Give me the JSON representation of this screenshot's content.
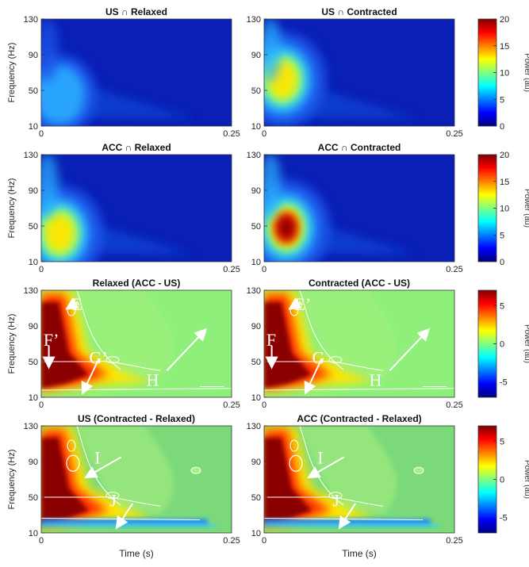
{
  "chart_data": {
    "type": "heatmap",
    "rows": [
      {
        "colorbar": {
          "label": "Power (au)",
          "ticks": [
            20,
            15,
            10,
            5,
            0
          ],
          "range": [
            0,
            20
          ]
        },
        "panels": [
          {
            "title": "US ∩ Relaxed",
            "ylabel": "Frequency (Hz)",
            "xlabel": "",
            "peak": {
              "t": 0.02,
              "f": 45,
              "value": 6
            },
            "annotations": []
          },
          {
            "title": "US ∩ Contracted",
            "ylabel": "",
            "xlabel": "",
            "peak": {
              "t": 0.02,
              "f": 62,
              "value": 13
            },
            "annotations": []
          }
        ]
      },
      {
        "colorbar": {
          "label": "Power (au)",
          "ticks": [
            20,
            15,
            10,
            5,
            0
          ],
          "range": [
            0,
            20
          ]
        },
        "panels": [
          {
            "title": "ACC ∩ Relaxed",
            "ylabel": "Frequency (Hz)",
            "xlabel": "",
            "peak": {
              "t": 0.02,
              "f": 42,
              "value": 14
            },
            "annotations": []
          },
          {
            "title": "ACC ∩ Contracted",
            "ylabel": "",
            "xlabel": "",
            "peak": {
              "t": 0.025,
              "f": 48,
              "value": 22
            },
            "annotations": []
          }
        ]
      },
      {
        "colorbar": {
          "label": "Power (au)",
          "ticks": [
            5,
            0,
            -5
          ],
          "range": [
            -7,
            7
          ]
        },
        "panels": [
          {
            "title": "Relaxed (ACC - US)",
            "ylabel": "Frequency (Hz)",
            "xlabel": "",
            "annotations": [
              {
                "text": "E",
                "at": [
                  0.04,
                  115
                ]
              },
              {
                "text": "F’",
                "at": [
                  0.003,
                  75
                ]
              },
              {
                "text": "G’",
                "at": [
                  0.063,
                  55
                ]
              },
              {
                "text": "H",
                "at": [
                  0.138,
                  30
                ]
              }
            ]
          },
          {
            "title": "Contracted (ACC - US)",
            "ylabel": "",
            "xlabel": "",
            "annotations": [
              {
                "text": "E’",
                "at": [
                  0.04,
                  115
                ]
              },
              {
                "text": "F",
                "at": [
                  0.003,
                  75
                ]
              },
              {
                "text": "G",
                "at": [
                  0.063,
                  55
                ]
              },
              {
                "text": "H",
                "at": [
                  0.138,
                  30
                ]
              }
            ]
          }
        ]
      },
      {
        "colorbar": {
          "label": "Power (au)",
          "ticks": [
            5,
            0,
            -5
          ],
          "range": [
            -7,
            7
          ]
        },
        "panels": [
          {
            "title": "US (Contracted - Relaxed)",
            "ylabel": "Frequency (Hz)",
            "xlabel": "Time (s)",
            "annotations": [
              {
                "text": "I",
                "at": [
                  0.07,
                  95
                ]
              },
              {
                "text": "J",
                "at": [
                  0.09,
                  47
                ]
              }
            ]
          },
          {
            "title": "ACC (Contracted - Relaxed)",
            "ylabel": "",
            "xlabel": "Time (s)",
            "annotations": [
              {
                "text": "I",
                "at": [
                  0.07,
                  95
                ]
              },
              {
                "text": "J",
                "at": [
                  0.09,
                  47
                ]
              }
            ]
          }
        ]
      }
    ],
    "x_range": [
      0,
      0.25
    ],
    "y_range": [
      10,
      130
    ],
    "x_tick_labels": [
      "0",
      "0.25"
    ],
    "y_tick_labels": [
      "130",
      "90",
      "50",
      "10"
    ]
  }
}
